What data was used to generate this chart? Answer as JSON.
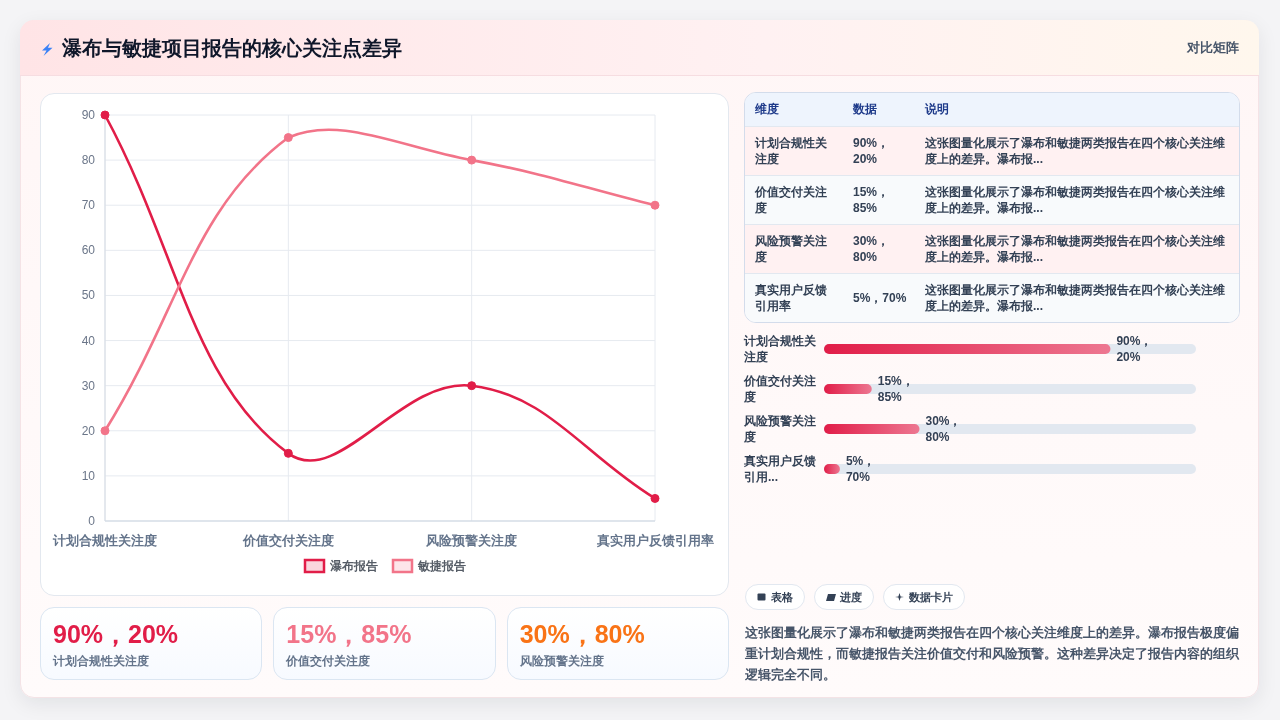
{
  "chart_data": [
    {
      "type": "other",
      "title": "瀑布与敏捷项目报告的核心关注点差异",
      "subtitle": "对比矩阵"
    },
    {
      "type": "line",
      "categories": [
        "计划合规性关注度",
        "价值交付关注度",
        "风险预警关注度",
        "真实用户反馈引用率"
      ],
      "series": [
        {
          "name": "瀑布报告",
          "color": "#e11d48",
          "values": [
            90,
            15,
            30,
            5
          ]
        },
        {
          "name": "敏捷报告",
          "color": "#f27489",
          "values": [
            20,
            85,
            80,
            70
          ]
        }
      ],
      "ylim": [
        0,
        90
      ],
      "yticks": [
        0,
        10,
        20,
        30,
        40,
        50,
        60,
        70,
        80,
        90
      ],
      "grid": true,
      "legend": "bottom",
      "marker": "circle",
      "line_style": "solid"
    },
    {
      "type": "other",
      "annotations": [
        "维度",
        "数据",
        "说明",
        "计划合规性关注度",
        "90%，20%",
        "这张图量化展示了瀑布和敏捷两类报告在四个核心关注维度上的差异。瀑布报...",
        "价值交付关注度",
        "15%，85%",
        "这张图量化展示了瀑布和敏捷两类报告在四个核心关注维度上的差异。瀑布报...",
        "风险预警关注度",
        "30%，80%",
        "这张图量化展示了瀑布和敏捷两类报告在四个核心关注维度上的差异。瀑布报...",
        "真实用户反馈引用率",
        "5%，70%",
        "这张图量化展示了瀑布和敏捷两类报告在四个核心关注维度上的差异。瀑布报..."
      ]
    },
    {
      "type": "bar",
      "orientation": "horizontal",
      "categories": [
        "计划合规性关注度",
        "价值交付关注度",
        "风险预警关注度",
        "真实用户反馈引用..."
      ],
      "values": [
        90,
        15,
        30,
        5
      ],
      "value_labels": [
        "90%，20%",
        "15%，85%",
        "30%，80%",
        "5%，70%"
      ],
      "color": "#e11d48",
      "tick_labels": "y"
    },
    {
      "type": "other",
      "annotations": [
        "90%，20%",
        "计划合规性关注度",
        "15%，85%",
        "价值交付关注度",
        "30%，80%",
        "风险预警关注度"
      ],
      "colors": [
        "#e11d48",
        "#f27489",
        "#f97316"
      ]
    },
    {
      "type": "other",
      "categories": [
        "表格",
        "进度",
        "数据卡片"
      ],
      "annotations": [
        "这张图量化展示了瀑布和敏捷两类报告在四个核心关注维度上的差异。瀑布报告极度偏重计划合规性，而敏捷报告关注价值交付和风险预警。这种差异决定了报告内容的组织逻辑完全不同。"
      ]
    }
  ]
}
